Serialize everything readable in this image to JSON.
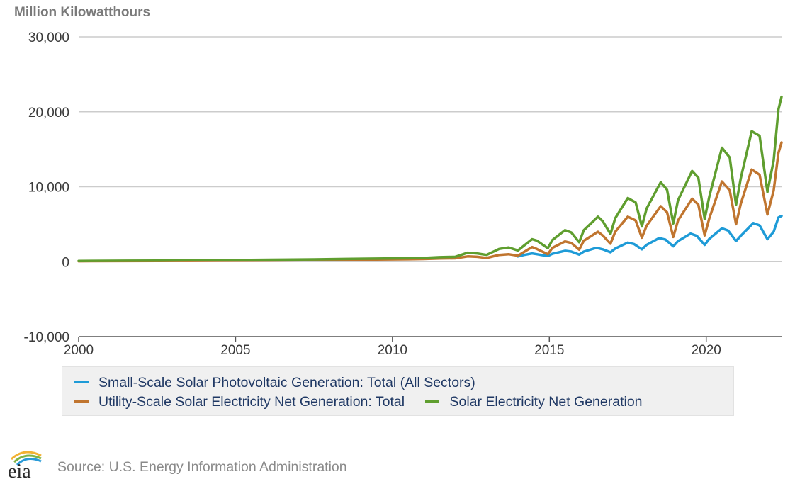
{
  "chart_data": {
    "type": "line",
    "unit_label": "Million Kilowatthours",
    "xlabel": "",
    "ylabel": "",
    "xlim": [
      2000,
      2022.4
    ],
    "ylim": [
      -10000,
      30000
    ],
    "x_ticks": [
      "2000",
      "2005",
      "2010",
      "2015",
      "2020"
    ],
    "y_ticks": [
      "-10,000",
      "0",
      "10,000",
      "20,000",
      "30,000"
    ],
    "grid": "horizontal",
    "legend_position": "bottom",
    "series": [
      {
        "name": "Small-Scale Solar Photovoltaic Generation: Total (All Sectors)",
        "color": "#1e9bd7",
        "x": [
          2014.0,
          2014.2,
          2014.45,
          2014.6,
          2014.95,
          2015.1,
          2015.5,
          2015.7,
          2015.95,
          2016.1,
          2016.5,
          2016.7,
          2016.95,
          2017.1,
          2017.5,
          2017.7,
          2017.95,
          2018.1,
          2018.5,
          2018.7,
          2018.95,
          2019.1,
          2019.5,
          2019.7,
          2019.95,
          2020.1,
          2020.5,
          2020.7,
          2020.95,
          2021.1,
          2021.5,
          2021.7,
          2021.95,
          2022.15,
          2022.3,
          2022.4
        ],
        "y": [
          700,
          900,
          1100,
          1000,
          750,
          1050,
          1450,
          1350,
          950,
          1350,
          1850,
          1650,
          1250,
          1750,
          2550,
          2350,
          1650,
          2250,
          3150,
          2950,
          2050,
          2750,
          3750,
          3450,
          2250,
          3050,
          4450,
          4150,
          2750,
          3450,
          5150,
          4850,
          3000,
          4000,
          5900,
          6100
        ]
      },
      {
        "name": "Utility-Scale Solar Electricity Net Generation: Total",
        "color": "#c0752f",
        "x": [
          2000.0,
          2001.5,
          2002.5,
          2003.5,
          2004.5,
          2005.5,
          2006.5,
          2007.5,
          2008.5,
          2009.5,
          2010.5,
          2011.0,
          2011.5,
          2012.0,
          2012.4,
          2012.7,
          2013.0,
          2013.4,
          2013.7,
          2014.0,
          2014.45,
          2014.6,
          2014.95,
          2015.1,
          2015.5,
          2015.7,
          2015.95,
          2016.1,
          2016.55,
          2016.7,
          2016.95,
          2017.1,
          2017.5,
          2017.75,
          2017.95,
          2018.1,
          2018.55,
          2018.75,
          2018.95,
          2019.1,
          2019.55,
          2019.75,
          2019.95,
          2020.1,
          2020.5,
          2020.75,
          2020.95,
          2021.1,
          2021.45,
          2021.7,
          2021.95,
          2022.15,
          2022.3,
          2022.4
        ],
        "y": [
          60,
          80,
          90,
          110,
          130,
          150,
          170,
          200,
          240,
          280,
          320,
          350,
          430,
          450,
          700,
          650,
          500,
          900,
          1000,
          800,
          1950,
          1700,
          1000,
          1850,
          2700,
          2500,
          1600,
          2800,
          4000,
          3500,
          2400,
          4000,
          6000,
          5500,
          3200,
          4800,
          7400,
          6600,
          3300,
          5500,
          8400,
          7600,
          3500,
          5800,
          10700,
          9500,
          5000,
          7700,
          12300,
          11600,
          6300,
          9500,
          14500,
          15900
        ]
      },
      {
        "name": "Solar Electricity Net Generation",
        "color": "#5f9e2f",
        "x": [
          2000.0,
          2001.5,
          2002.5,
          2003.5,
          2004.5,
          2005.5,
          2006.5,
          2007.5,
          2008.5,
          2009.5,
          2010.5,
          2011.0,
          2011.5,
          2012.0,
          2012.4,
          2012.7,
          2013.0,
          2013.4,
          2013.7,
          2014.0,
          2014.45,
          2014.6,
          2014.95,
          2015.1,
          2015.5,
          2015.7,
          2015.95,
          2016.1,
          2016.55,
          2016.7,
          2016.95,
          2017.1,
          2017.5,
          2017.75,
          2017.95,
          2018.1,
          2018.55,
          2018.75,
          2018.95,
          2019.1,
          2019.55,
          2019.75,
          2019.95,
          2020.1,
          2020.5,
          2020.75,
          2020.95,
          2021.1,
          2021.45,
          2021.7,
          2021.95,
          2022.15,
          2022.3,
          2022.4
        ],
        "y": [
          100,
          130,
          150,
          180,
          210,
          240,
          270,
          310,
          360,
          410,
          460,
          500,
          600,
          650,
          1200,
          1100,
          900,
          1700,
          1900,
          1500,
          3000,
          2800,
          1800,
          2900,
          4200,
          3900,
          2600,
          4200,
          6000,
          5400,
          3700,
          5800,
          8500,
          7900,
          4700,
          7100,
          10600,
          9600,
          5100,
          8200,
          12100,
          11200,
          5700,
          8700,
          15200,
          13900,
          7600,
          11100,
          17400,
          16800,
          9300,
          13500,
          20300,
          22000
        ]
      }
    ]
  },
  "legend": {
    "row1": [
      "Small-Scale Solar Photovoltaic Generation: Total (All Sectors)"
    ],
    "row2": [
      "Utility-Scale Solar Electricity Net Generation: Total",
      "Solar Electricity Net Generation"
    ]
  },
  "footer": {
    "logo_text": "eia",
    "source": "Source: U.S. Energy Information Administration"
  }
}
